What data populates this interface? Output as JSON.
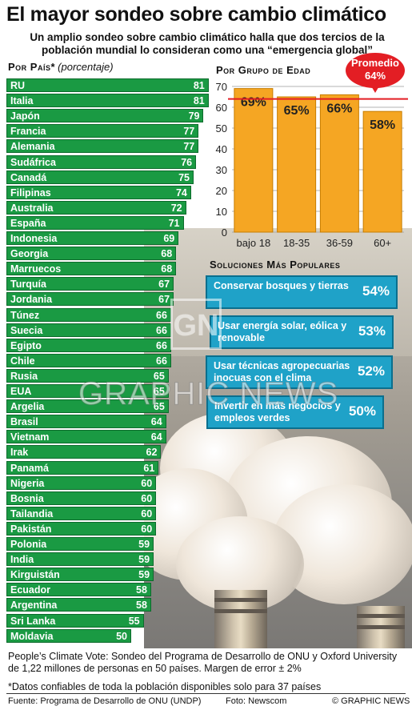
{
  "title": "El mayor sondeo sobre cambio climático",
  "subtitle": "Un amplio sondeo sobre cambio climático halla que dos tercios de la población mundial lo consideran como una “emergencia global”",
  "country_section": {
    "heading": "Por País",
    "asterisk": "*",
    "unit_note": "(porcentaje)"
  },
  "age_section": {
    "heading": "Por Grupo de Edad"
  },
  "average": {
    "line1": "Promedio",
    "line2": "64%",
    "value": 64
  },
  "solutions": {
    "heading": "Soluciones Más Populares",
    "items": [
      {
        "label": "Conservar bosques y tierras",
        "value": "54%"
      },
      {
        "label": "Usar energía solar, eólica y renovable",
        "value": "53%"
      },
      {
        "label": "Usar técnicas agropecuarias inocuas con el clima",
        "value": "52%"
      },
      {
        "label": "Invertir en más negocios y empleos verdes",
        "value": "50%"
      }
    ]
  },
  "watermark": {
    "text": "GRAPHIC NEWS",
    "logo": "GN"
  },
  "footer": {
    "notes": "People’s Climate Vote: Sondeo del Programa de Desarrollo de ONU y Oxford University de 1,22 millones de personas en 50 países. Margen de error ± 2%",
    "footnote": "*Datos confiables de toda la población disponibles solo para 37 países",
    "source": "Fuente: Programa de Desarrollo de ONU (UNDP)",
    "photo_credit": "Foto: Newscom",
    "copyright": "© GRAPHIC NEWS"
  },
  "colors": {
    "country_bar": "#1a9a43",
    "age_bar": "#f5a623",
    "average_line": "#e31e24",
    "solution_box": "#1fa2c8"
  },
  "chart_data": [
    {
      "type": "bar",
      "orientation": "horizontal",
      "title": "Por País",
      "unit": "porcentaje",
      "categories": [
        "RU",
        "Italia",
        "Japón",
        "Francia",
        "Alemania",
        "Sudáfrica",
        "Canadá",
        "Filipinas",
        "Australia",
        "España",
        "Indonesia",
        "Georgia",
        "Marruecos",
        "Turquía",
        "Jordania",
        "Túnez",
        "Suecia",
        "Egipto",
        "Chile",
        "Rusia",
        "EUA",
        "Argelia",
        "Brasil",
        "Vietnam",
        "Irak",
        "Panamá",
        "Nigeria",
        "Bosnia",
        "Tailandia",
        "Pakistán",
        "Polonia",
        "India",
        "Kirguistán",
        "Ecuador",
        "Argentina",
        "Sri Lanka",
        "Moldavia"
      ],
      "values": [
        81,
        81,
        79,
        77,
        77,
        76,
        75,
        74,
        72,
        71,
        69,
        68,
        68,
        67,
        67,
        66,
        66,
        66,
        66,
        65,
        65,
        65,
        64,
        64,
        62,
        61,
        60,
        60,
        60,
        60,
        59,
        59,
        59,
        58,
        58,
        55,
        50
      ]
    },
    {
      "type": "bar",
      "title": "Por Grupo de Edad",
      "categories": [
        "bajo 18",
        "18-35",
        "36-59",
        "60+"
      ],
      "values": [
        69,
        65,
        66,
        58
      ],
      "value_labels": [
        "69%",
        "65%",
        "66%",
        "58%"
      ],
      "y_ticks": [
        0,
        10,
        20,
        30,
        40,
        50,
        60,
        70
      ],
      "ylim": [
        0,
        70
      ],
      "reference_line": 64
    }
  ]
}
